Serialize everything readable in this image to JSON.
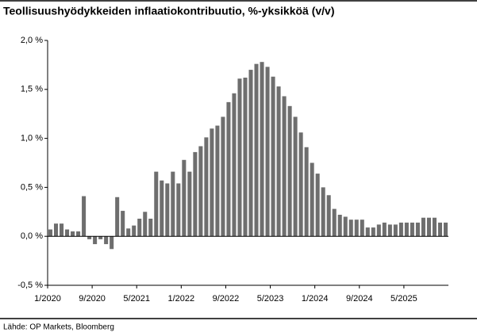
{
  "chart_data": {
    "type": "bar",
    "title": "Teollisuushyödykkeiden inflaatiokontribuutio, %-yksikköä (v/v)",
    "source": "Lähde: OP Markets, Bloomberg",
    "color": "#6e6e6e",
    "categories": [
      "1/2020",
      null,
      null,
      null,
      null,
      null,
      null,
      null,
      "9/2020",
      null,
      null,
      null,
      null,
      null,
      null,
      null,
      "5/2021",
      null,
      null,
      null,
      null,
      null,
      null,
      null,
      "1/2022",
      null,
      null,
      null,
      null,
      null,
      null,
      null,
      "9/2022",
      null,
      null,
      null,
      null,
      null,
      null,
      null,
      "5/2023",
      null,
      null,
      null,
      null,
      null,
      null,
      null,
      "1/2024",
      null,
      null,
      null,
      null,
      null,
      null,
      null,
      "9/2024",
      null,
      null,
      null,
      null,
      null,
      null,
      null,
      "5/2025",
      null,
      null,
      null,
      null,
      null,
      null,
      null
    ],
    "values": [
      0.07,
      0.13,
      0.13,
      0.07,
      0.05,
      0.05,
      0.41,
      -0.03,
      -0.08,
      -0.03,
      -0.08,
      -0.13,
      0.4,
      0.26,
      0.08,
      0.11,
      0.18,
      0.25,
      0.18,
      0.66,
      0.57,
      0.54,
      0.66,
      0.54,
      0.78,
      0.66,
      0.86,
      0.92,
      1.01,
      1.1,
      1.13,
      1.22,
      1.37,
      1.46,
      1.61,
      1.62,
      1.7,
      1.76,
      1.78,
      1.73,
      1.63,
      1.53,
      1.43,
      1.33,
      1.22,
      1.06,
      0.91,
      0.75,
      0.64,
      0.5,
      0.42,
      0.28,
      0.22,
      0.2,
      0.17,
      0.17,
      0.17,
      0.09,
      0.09,
      0.12,
      0.14,
      0.12,
      0.12,
      0.14,
      0.14,
      0.14,
      0.14,
      0.19,
      0.19,
      0.19,
      0.14,
      0.14
    ],
    "ylim": [
      -0.5,
      2.0
    ],
    "yticks": [
      {
        "value": -0.5,
        "label": "-0,5 %"
      },
      {
        "value": 0,
        "label": "0,0 %"
      },
      {
        "value": 0.5,
        "label": "0,5 %"
      },
      {
        "value": 1.0,
        "label": "1,0 %"
      },
      {
        "value": 1.5,
        "label": "1,5 %"
      },
      {
        "value": 2.0,
        "label": "2,0 %"
      }
    ],
    "grid": false
  }
}
